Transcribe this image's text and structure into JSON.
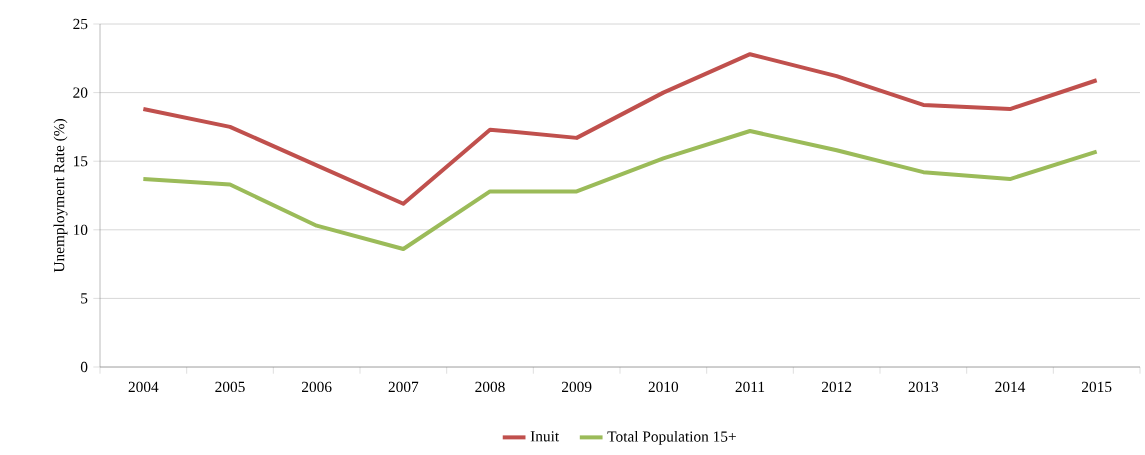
{
  "chart_data": {
    "type": "line",
    "ylabel": "Unemployment Rate (%)",
    "categories": [
      "2004",
      "2005",
      "2006",
      "2007",
      "2008",
      "2009",
      "2010",
      "2011",
      "2012",
      "2013",
      "2014",
      "2015"
    ],
    "series": [
      {
        "name": "Inuit",
        "color": "#c0504d",
        "values": [
          18.8,
          17.5,
          14.7,
          11.9,
          17.3,
          16.7,
          20.0,
          22.8,
          21.2,
          19.1,
          18.8,
          20.9
        ]
      },
      {
        "name": "Total Population 15+",
        "color": "#9bbb59",
        "values": [
          13.7,
          13.3,
          10.3,
          8.6,
          12.8,
          12.8,
          15.2,
          17.2,
          15.8,
          14.2,
          13.7,
          15.7
        ]
      }
    ],
    "ylim": [
      0,
      25
    ],
    "yticks": [
      0,
      5,
      10,
      15,
      20,
      25
    ],
    "grid": "y",
    "legend": "bottom"
  }
}
